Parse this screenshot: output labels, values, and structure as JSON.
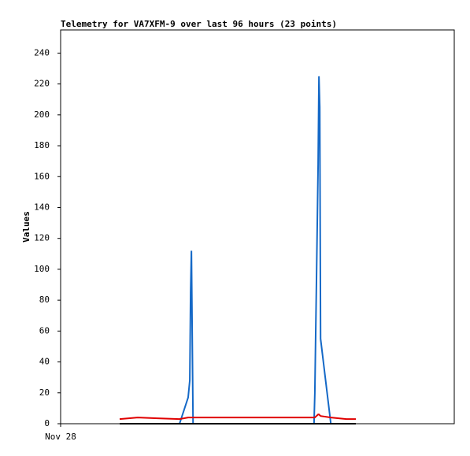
{
  "chart_data": {
    "type": "line",
    "title": "Telemetry for VA7XFM-9 over last 96 hours (23 points)",
    "y_label": "Values",
    "x": [
      14.4,
      18.8,
      23.6,
      29.0,
      31.1,
      31.5,
      31.7,
      31.9,
      32.3,
      42.8,
      52.4,
      61.8,
      62.0,
      62.2,
      62.4,
      62.6,
      62.8,
      63.0,
      63.2,
      63.4,
      65.9,
      69.7,
      72.0
    ],
    "xlim": [
      0,
      96
    ],
    "xticks": [
      {
        "value": 0,
        "label": "Nov 28"
      }
    ],
    "ylim": [
      0,
      255
    ],
    "yticks": [
      0,
      20,
      40,
      60,
      80,
      100,
      120,
      140,
      160,
      180,
      200,
      220,
      240
    ],
    "series": [
      {
        "color": "#1569c7",
        "values": [
          0,
          0,
          0,
          0,
          17,
          28,
          85,
          112,
          0,
          0,
          0,
          0,
          20,
          57,
          93,
          131,
          168,
          225,
          205,
          55,
          0,
          0,
          0
        ]
      },
      {
        "color": "#e00000",
        "values": [
          3,
          4,
          3.5,
          3,
          4,
          4,
          4,
          4,
          4,
          4,
          4,
          4,
          4,
          4.5,
          5,
          5.5,
          6,
          6,
          5.5,
          5,
          4,
          3,
          3
        ]
      },
      {
        "color": "#000000",
        "values": [
          0,
          0,
          0,
          0,
          0,
          0,
          0,
          0,
          0,
          0,
          0,
          0,
          0,
          0,
          0,
          0,
          0,
          0,
          0,
          0,
          0,
          0,
          0
        ]
      }
    ]
  }
}
